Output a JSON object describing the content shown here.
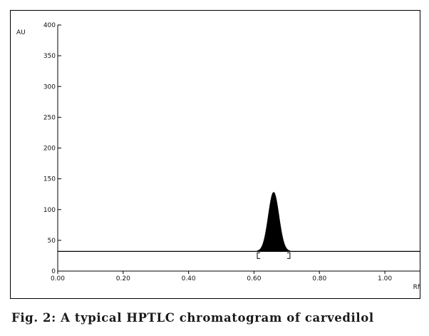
{
  "caption": "Fig. 2: A typical HPTLC chromatogram of carvedilol",
  "chart_data": {
    "type": "line",
    "title": "",
    "xlabel": "Rf",
    "ylabel": "AU",
    "xlim": [
      0.0,
      1.05
    ],
    "ylim": [
      0,
      400
    ],
    "x_ticks": [
      {
        "value": 0.0,
        "label": "0.00"
      },
      {
        "value": 0.2,
        "label": "0.20"
      },
      {
        "value": 0.4,
        "label": "0.40"
      },
      {
        "value": 0.6,
        "label": "0.60"
      },
      {
        "value": 0.8,
        "label": "0.80"
      },
      {
        "value": 1.0,
        "label": "1.00"
      }
    ],
    "y_ticks": [
      {
        "value": 0,
        "label": "0"
      },
      {
        "value": 50,
        "label": "50"
      },
      {
        "value": 100,
        "label": "100"
      },
      {
        "value": 150,
        "label": "150"
      },
      {
        "value": 200,
        "label": "200"
      },
      {
        "value": 250,
        "label": "250"
      },
      {
        "value": 300,
        "label": "300"
      },
      {
        "value": 350,
        "label": "350"
      },
      {
        "value": 400,
        "label": "400"
      }
    ],
    "baseline": 32,
    "peak": {
      "rf": 0.66,
      "height": 128,
      "start_rf": 0.61,
      "end_rf": 0.71
    },
    "grid": false,
    "colors": {
      "line": "#000000",
      "peak_fill": "#000000"
    }
  }
}
